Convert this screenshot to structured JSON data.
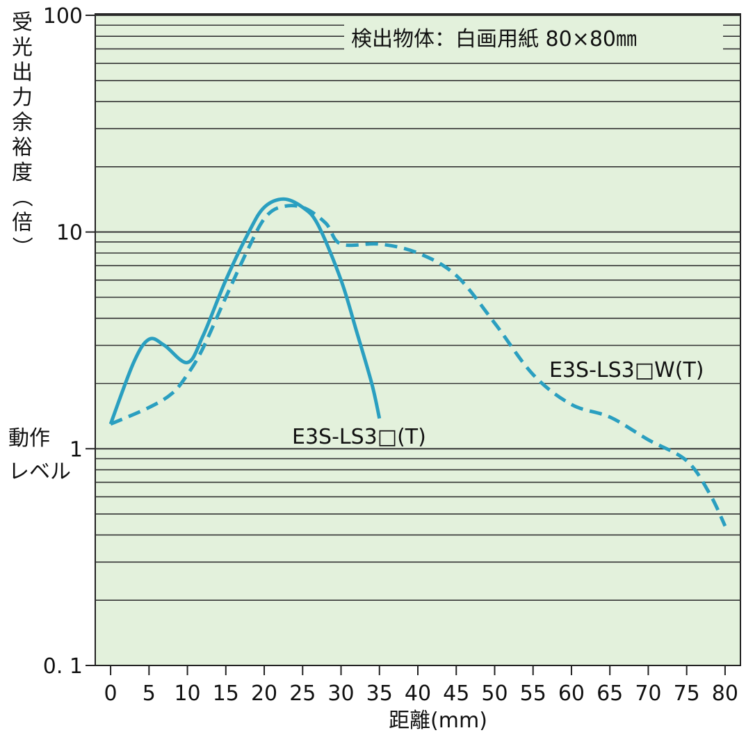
{
  "chart_data": {
    "type": "line",
    "ylabel": "受光出力余裕度（倍）",
    "xlabel": "距離(mm)",
    "yscale": "log",
    "ylim": [
      0.1,
      100
    ],
    "xlim": [
      -2,
      82
    ],
    "grid": true,
    "y_ticks": [
      {
        "value": 100,
        "label": "100"
      },
      {
        "value": 10,
        "label": "10"
      },
      {
        "value": 1,
        "label": "1"
      },
      {
        "value": 0.1,
        "label": "0. 1"
      }
    ],
    "x_ticks": [
      0,
      5,
      10,
      15,
      20,
      25,
      30,
      35,
      40,
      45,
      50,
      55,
      60,
      65,
      70,
      75,
      80
    ],
    "annotation": "検出物体：白画用紙 80×80㎜",
    "operating_level_label": [
      "動作",
      "レベル"
    ],
    "operating_level_value": 1,
    "series": [
      {
        "name": "E3S-LS3□(T)",
        "style": "solid",
        "color": "#2a9fc0",
        "x": [
          0,
          3,
          5,
          7,
          10,
          12,
          15,
          18,
          20,
          22.5,
          25,
          27,
          30,
          32,
          34,
          35
        ],
        "y": [
          1.3,
          2.5,
          3.2,
          3.0,
          2.5,
          3.3,
          6.0,
          10.0,
          13.0,
          14.2,
          13.0,
          10.8,
          6.0,
          3.5,
          2.0,
          1.38
        ]
      },
      {
        "name": "E3S-LS3□W(T)",
        "style": "dashed",
        "color": "#2a9fc0",
        "x": [
          0,
          5,
          8,
          10,
          12,
          15,
          18,
          20,
          22,
          25,
          28,
          30,
          35,
          40,
          45,
          50,
          55,
          60,
          65,
          70,
          75,
          78,
          80
        ],
        "y": [
          1.3,
          1.55,
          1.8,
          2.2,
          2.9,
          5.0,
          8.5,
          11.5,
          13.0,
          13.0,
          11.0,
          8.8,
          8.8,
          8.0,
          6.3,
          3.8,
          2.2,
          1.6,
          1.4,
          1.1,
          0.88,
          0.62,
          0.44
        ]
      }
    ]
  }
}
